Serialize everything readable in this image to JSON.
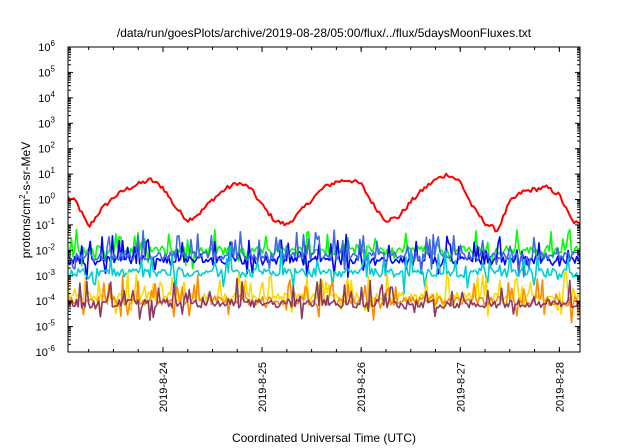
{
  "chart_data": {
    "type": "line",
    "title": "/data/run/goesPlots/archive/2019-08-28/05:00/flux/../flux/5daysMoonFluxes.txt",
    "xlabel": "Coordinated Universal Time (UTC)",
    "ylabel_parts": {
      "base": "protons/cm",
      "sup": "2",
      "rest": "-s-sr-MeV"
    },
    "yscale": "log",
    "ylim": [
      1e-06,
      1000000.0
    ],
    "xlim": [
      "2019-08-23 01:00",
      "2019-08-28 05:00"
    ],
    "y_ticks": [
      {
        "value": 1e-06,
        "base": "10",
        "exp": "-6"
      },
      {
        "value": 1e-05,
        "base": "10",
        "exp": "-5"
      },
      {
        "value": 0.0001,
        "base": "10",
        "exp": "-4"
      },
      {
        "value": 0.001,
        "base": "10",
        "exp": "-3"
      },
      {
        "value": 0.01,
        "base": "10",
        "exp": "-2"
      },
      {
        "value": 0.1,
        "base": "10",
        "exp": "-1"
      },
      {
        "value": 1.0,
        "base": "10",
        "exp": "0"
      },
      {
        "value": 10.0,
        "base": "10",
        "exp": "1"
      },
      {
        "value": 100.0,
        "base": "10",
        "exp": "2"
      },
      {
        "value": 1000.0,
        "base": "10",
        "exp": "3"
      },
      {
        "value": 10000.0,
        "base": "10",
        "exp": "4"
      },
      {
        "value": 100000.0,
        "base": "10",
        "exp": "5"
      },
      {
        "value": 1000000.0,
        "base": "10",
        "exp": "6"
      }
    ],
    "x_ticks": [
      "2019-8-24",
      "2019-8-25",
      "2019-8-26",
      "2019-8-27",
      "2019-8-28"
    ],
    "grid": false,
    "legend": "none",
    "series": [
      {
        "color": "#ff0000",
        "x": [
          "2019-08-23 01:00",
          "2019-08-23 03:00",
          "2019-08-23 06:00",
          "2019-08-23 09:00",
          "2019-08-23 12:00",
          "2019-08-23 15:00",
          "2019-08-23 18:00",
          "2019-08-23 21:00",
          "2019-08-24 00:00",
          "2019-08-24 03:00",
          "2019-08-24 06:00",
          "2019-08-24 09:00",
          "2019-08-24 12:00",
          "2019-08-24 15:00",
          "2019-08-24 18:00",
          "2019-08-24 21:00",
          "2019-08-25 00:00",
          "2019-08-25 03:00",
          "2019-08-25 06:00",
          "2019-08-25 09:00",
          "2019-08-25 12:00",
          "2019-08-25 15:00",
          "2019-08-25 18:00",
          "2019-08-25 21:00",
          "2019-08-26 00:00",
          "2019-08-26 03:00",
          "2019-08-26 06:00",
          "2019-08-26 09:00",
          "2019-08-26 12:00",
          "2019-08-26 15:00",
          "2019-08-26 18:00",
          "2019-08-26 21:00",
          "2019-08-27 00:00",
          "2019-08-27 03:00",
          "2019-08-27 06:00",
          "2019-08-27 09:00",
          "2019-08-27 12:00",
          "2019-08-27 15:00",
          "2019-08-27 18:00",
          "2019-08-27 21:00",
          "2019-08-28 00:00",
          "2019-08-28 03:00",
          "2019-08-28 05:00"
        ],
        "y": [
          1.2,
          0.8,
          0.08,
          0.4,
          1.2,
          2.5,
          4,
          6,
          3,
          0.5,
          0.15,
          0.3,
          1,
          2.5,
          4.5,
          3,
          0.6,
          0.15,
          0.1,
          0.3,
          1,
          3,
          5,
          6,
          4,
          0.6,
          0.15,
          0.2,
          0.8,
          2.5,
          6,
          10,
          5,
          0.5,
          0.12,
          0.06,
          0.8,
          2,
          2.5,
          3,
          1.5,
          0.15,
          0.1
        ]
      },
      {
        "color": "#00ff00",
        "x": [
          "2019-08-23 01:00",
          "2019-08-28 05:00"
        ],
        "y": [
          0.01,
          0.01
        ]
      },
      {
        "color": "#0000ff",
        "x": [
          "2019-08-23 01:00",
          "2019-08-28 05:00"
        ],
        "y": [
          0.004,
          0.004
        ]
      },
      {
        "color": "#4169e1",
        "x": [
          "2019-08-23 01:00",
          "2019-08-28 05:00"
        ],
        "y": [
          0.006,
          0.006
        ]
      },
      {
        "color": "#00ced1",
        "x": [
          "2019-08-23 01:00",
          "2019-08-28 05:00"
        ],
        "y": [
          0.0013,
          0.0013
        ]
      },
      {
        "color": "#ffd700",
        "x": [
          "2019-08-23 01:00",
          "2019-08-28 05:00"
        ],
        "y": [
          0.00015,
          0.00015
        ]
      },
      {
        "color": "#ff8c00",
        "x": [
          "2019-08-23 01:00",
          "2019-08-28 05:00"
        ],
        "y": [
          0.0001,
          0.0001
        ]
      },
      {
        "color": "#8b3a62",
        "x": [
          "2019-08-23 01:00",
          "2019-08-28 05:00"
        ],
        "y": [
          8e-05,
          8e-05
        ]
      }
    ]
  }
}
